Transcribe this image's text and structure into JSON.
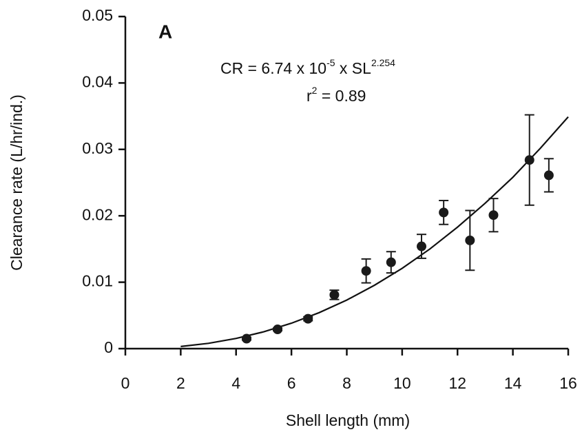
{
  "chart_data": {
    "type": "scatter",
    "panel_label": "A",
    "x_label": "Shell length (mm)",
    "y_label": "Clearance rate (L/hr/ind.)",
    "equation": {
      "lhs": "CR = 6.74 x 10",
      "exp1": "-5",
      "mid": " x SL",
      "exp2": "2.254"
    },
    "r2": {
      "base": "r",
      "exp": "2",
      "rest": " = 0.89"
    },
    "x": [
      4.38,
      5.5,
      6.6,
      7.55,
      8.7,
      9.6,
      10.7,
      11.5,
      12.45,
      13.3,
      14.6,
      15.3
    ],
    "values": [
      0.0015,
      0.0029,
      0.0045,
      0.0081,
      0.0117,
      0.013,
      0.0154,
      0.0205,
      0.0163,
      0.0201,
      0.0284,
      0.0261
    ],
    "errors": [
      0.0002,
      0.0002,
      0.0003,
      0.0007,
      0.0018,
      0.0016,
      0.0018,
      0.0018,
      0.0045,
      0.0025,
      0.0068,
      0.0025
    ],
    "color": "#1a1a1a",
    "fit": {
      "x": [
        2,
        3,
        4,
        5,
        6,
        7,
        8,
        9,
        10,
        11,
        12,
        13,
        14,
        15,
        16
      ],
      "values": [
        0.00032,
        0.0008,
        0.00154,
        0.00253,
        0.00383,
        0.00541,
        0.00731,
        0.00954,
        0.0121,
        0.015,
        0.0183,
        0.0219,
        0.0258,
        0.0302,
        0.0349
      ]
    },
    "xlim": [
      0,
      16
    ],
    "ylim": [
      0,
      0.05
    ],
    "xticks": [
      0,
      2,
      4,
      6,
      8,
      10,
      12,
      14,
      16
    ],
    "yticks": [
      0,
      0.01,
      0.02,
      0.03,
      0.04,
      0.05
    ]
  }
}
